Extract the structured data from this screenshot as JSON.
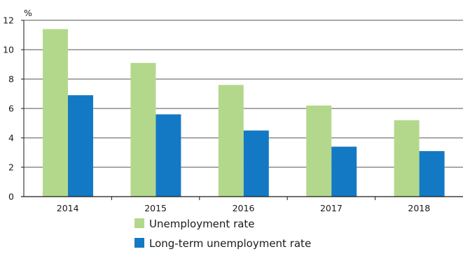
{
  "chart_data": {
    "type": "bar",
    "unit_label": "%",
    "categories": [
      "2014",
      "2015",
      "2016",
      "2017",
      "2018"
    ],
    "series": [
      {
        "name": "Unemployment rate",
        "color": "#b3d88c",
        "values": [
          11.4,
          9.1,
          7.6,
          6.2,
          5.2
        ]
      },
      {
        "name": "Long-term unemployment rate",
        "color": "#1479c4",
        "values": [
          6.9,
          5.6,
          4.5,
          3.4,
          3.1
        ]
      }
    ],
    "ylim": [
      0,
      12
    ],
    "yticks": [
      "0",
      "2",
      "4",
      "6",
      "8",
      "10",
      "12"
    ],
    "grid": true,
    "legend_position": "bottom-center"
  }
}
